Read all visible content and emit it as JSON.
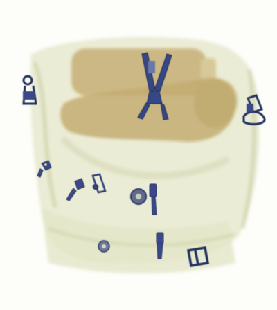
{
  "image": {
    "kind": "x-ray baggage scan",
    "background_color": "#fdfdf9",
    "bag_tint": "#d9dcb8",
    "organic_tint": "#c7b27a",
    "metal_tint": "#3b4a8a"
  },
  "objects": [
    {
      "name": "scissors",
      "material": "metal"
    },
    {
      "name": "bottle",
      "material": "organic"
    },
    {
      "name": "bag-clip",
      "material": "metal",
      "count": 2
    },
    {
      "name": "zipper-pull",
      "material": "metal",
      "count": 5
    },
    {
      "name": "button",
      "material": "metal",
      "count": 2
    },
    {
      "name": "buckle",
      "material": "metal"
    }
  ]
}
